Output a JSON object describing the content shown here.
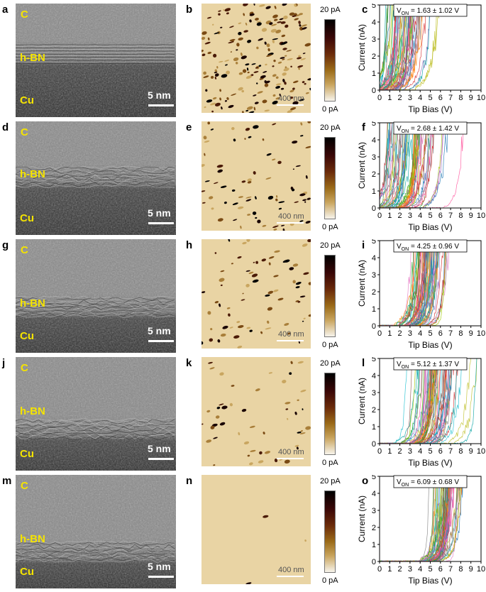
{
  "figure": {
    "scale_bar_text": "5 nm",
    "map_scale_text": "400 nm",
    "colorbar": {
      "top": "20 pA",
      "bottom": "0 pA"
    },
    "layer_labels": {
      "top": "C",
      "middle": "h-BN",
      "bottom": "Cu"
    },
    "rows": [
      {
        "tem_label": "a",
        "map_label": "b",
        "iv_label": "c",
        "von": "V",
        "von_sub": "ON",
        "von_value": " = 1.63 ± 1.02 V"
      },
      {
        "tem_label": "d",
        "map_label": "e",
        "iv_label": "f",
        "von": "V",
        "von_sub": "ON",
        "von_value": " = 2.68 ± 1.42 V"
      },
      {
        "tem_label": "g",
        "map_label": "h",
        "iv_label": "i",
        "von": "V",
        "von_sub": "ON",
        "von_value": " = 4.25 ± 0.96 V"
      },
      {
        "tem_label": "j",
        "map_label": "k",
        "iv_label": "l",
        "von": "V",
        "von_sub": "ON",
        "von_value": " = 5.12 ± 1.37 V"
      },
      {
        "tem_label": "m",
        "map_label": "n",
        "iv_label": "o",
        "von": "V",
        "von_sub": "ON",
        "von_value": " = 6.09 ± 0.68 V"
      }
    ]
  },
  "chart_data": [
    {
      "type": "line",
      "xlabel": "Tip Bias (V)",
      "ylabel": "Current (nA)",
      "xlim": [
        0,
        10
      ],
      "ylim": [
        0,
        5
      ],
      "xticks": [
        "0",
        "1",
        "2",
        "3",
        "4",
        "5",
        "6",
        "7",
        "8",
        "9",
        "10"
      ],
      "yticks": [
        "0",
        "1",
        "2",
        "3",
        "4",
        "5"
      ],
      "annotation": "VON = 1.63 ± 1.02 V",
      "von_mean": 1.63,
      "von_std": 1.02
    },
    {
      "type": "line",
      "xlabel": "Tip Bias (V)",
      "ylabel": "Current (nA)",
      "xlim": [
        0,
        10
      ],
      "ylim": [
        0,
        5
      ],
      "xticks": [
        "0",
        "1",
        "2",
        "3",
        "4",
        "5",
        "6",
        "7",
        "8",
        "9",
        "10"
      ],
      "yticks": [
        "0",
        "1",
        "2",
        "3",
        "4",
        "5"
      ],
      "annotation": "VON = 2.68 ± 1.42 V",
      "von_mean": 2.68,
      "von_std": 1.42
    },
    {
      "type": "line",
      "xlabel": "Tip Bias (V)",
      "ylabel": "Current (nA)",
      "xlim": [
        0,
        10
      ],
      "ylim": [
        0,
        5
      ],
      "xticks": [
        "0",
        "1",
        "2",
        "3",
        "4",
        "5",
        "6",
        "7",
        "8",
        "9",
        "10"
      ],
      "yticks": [
        "0",
        "1",
        "2",
        "3",
        "4",
        "5"
      ],
      "annotation": "VON = 4.25 ± 0.96 V",
      "von_mean": 4.25,
      "von_std": 0.96
    },
    {
      "type": "line",
      "xlabel": "Tip Bias (V)",
      "ylabel": "Current (nA)",
      "xlim": [
        0,
        10
      ],
      "ylim": [
        0,
        5
      ],
      "xticks": [
        "0",
        "1",
        "2",
        "3",
        "4",
        "5",
        "6",
        "7",
        "8",
        "9",
        "10"
      ],
      "yticks": [
        "0",
        "1",
        "2",
        "3",
        "4",
        "5"
      ],
      "annotation": "VON = 5.12 ± 1.37 V",
      "von_mean": 5.12,
      "von_std": 1.37
    },
    {
      "type": "line",
      "xlabel": "Tip Bias (V)",
      "ylabel": "Current (nA)",
      "xlim": [
        0,
        10
      ],
      "ylim": [
        0,
        5
      ],
      "xticks": [
        "0",
        "1",
        "2",
        "3",
        "4",
        "5",
        "6",
        "7",
        "8",
        "9",
        "10"
      ],
      "yticks": [
        "0",
        "1",
        "2",
        "3",
        "4",
        "5"
      ],
      "annotation": "VON = 6.09 ± 0.68 V",
      "von_mean": 6.09,
      "von_std": 0.68
    }
  ]
}
